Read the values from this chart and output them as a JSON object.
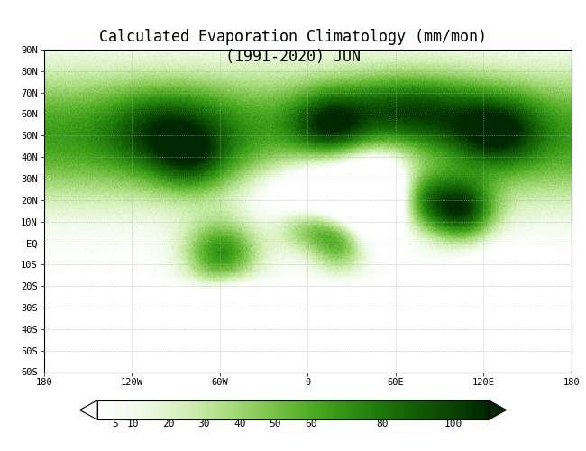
{
  "title_line1": "Calculated Evaporation Climatology (mm/mon)",
  "title_line2": "(1991-2020) JUN",
  "title_fontsize": 12,
  "colorbar_ticks": [
    5,
    10,
    20,
    30,
    40,
    50,
    60,
    80,
    100
  ],
  "vmin": 0,
  "vmax": 110,
  "cmap_colors": [
    "#ffffff",
    "#f0fae8",
    "#d4f0b8",
    "#aade80",
    "#7cc44a",
    "#4aaa20",
    "#2a8a10",
    "#166806",
    "#0a4a02",
    "#002800"
  ],
  "lon_ticks": [
    -180,
    -120,
    -60,
    0,
    60,
    120,
    180
  ],
  "lon_labels": [
    "180",
    "120W",
    "60W",
    "0",
    "60E",
    "120E",
    "180"
  ],
  "lat_ticks": [
    90,
    80,
    70,
    60,
    50,
    40,
    30,
    20,
    10,
    0,
    -10,
    -20,
    -30,
    -40,
    -50,
    -60
  ],
  "lat_labels": [
    "90N",
    "80N",
    "70N",
    "60N",
    "50N",
    "40N",
    "30N",
    "20N",
    "10N",
    "EQ",
    "10S",
    "20S",
    "30S",
    "40S",
    "50S",
    "60S"
  ],
  "background_color": "#ffffff",
  "grid_color": "#aaaaaa"
}
